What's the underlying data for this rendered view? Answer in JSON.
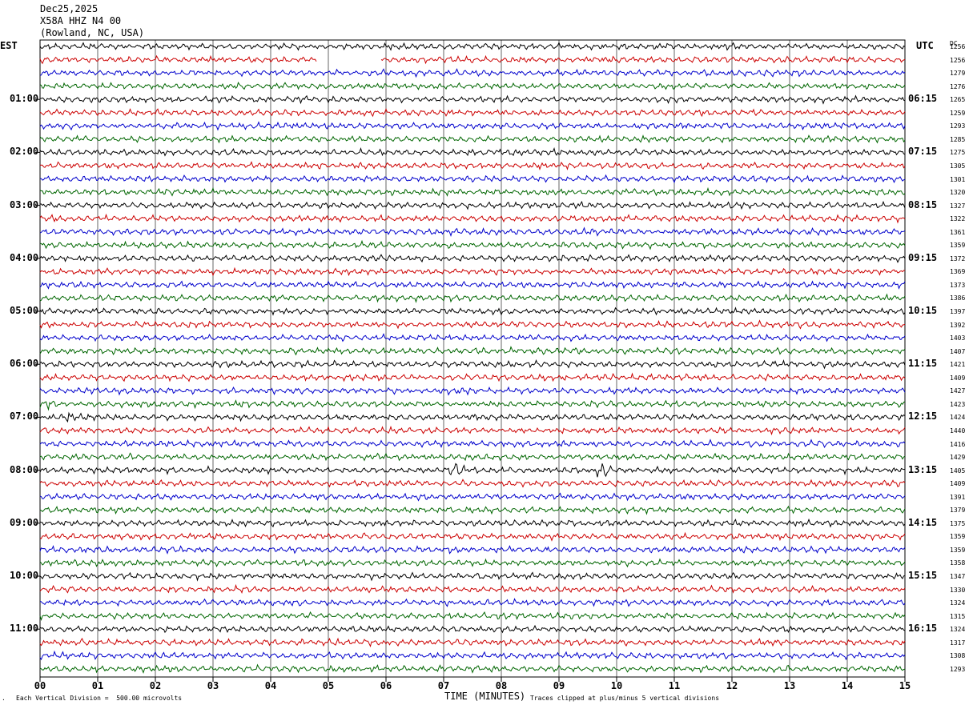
{
  "header": {
    "date": "Dec25,2025",
    "station": "X58A HHZ N4 00",
    "location": "(Rowland, NC, USA)"
  },
  "left_axis_title": "EST",
  "right_axis_title": "UTC",
  "dc_title": "DC",
  "footer": {
    "scale_note": "Each Vertical Division =  500.00 microvolts",
    "clip_note": "Traces clipped at plus/minus 5 vertical divisions",
    "corner_mark": "."
  },
  "colors": {
    "trace_cycle": [
      "#000000",
      "#cc0000",
      "#0000cc",
      "#006600"
    ],
    "grid": "#000000"
  },
  "chart_data": {
    "type": "line",
    "title": "",
    "xlabel": "TIME (MINUTES)",
    "ylabel": "",
    "xlim": [
      0,
      15
    ],
    "x_ticks": [
      "00",
      "01",
      "02",
      "03",
      "04",
      "05",
      "06",
      "07",
      "08",
      "09",
      "10",
      "11",
      "12",
      "13",
      "14",
      "15"
    ],
    "traces_per_hour": 4,
    "trace_count": 48,
    "left_hour_labels": [
      "01:00",
      "02:00",
      "03:00",
      "04:00",
      "05:00",
      "06:00",
      "07:00",
      "08:00",
      "09:00",
      "10:00",
      "11:00"
    ],
    "right_hour_labels": [
      "06:15",
      "07:15",
      "08:15",
      "09:15",
      "10:15",
      "11:15",
      "12:15",
      "13:15",
      "14:15",
      "15:15",
      "16:15"
    ],
    "dc_offsets": [
      1256,
      1256,
      1279,
      1276,
      1265,
      1259,
      1293,
      1285,
      1275,
      1305,
      1301,
      1320,
      1327,
      1322,
      1361,
      1359,
      1372,
      1369,
      1373,
      1386,
      1397,
      1392,
      1403,
      1407,
      1421,
      1409,
      1427,
      1423,
      1424,
      1440,
      1416,
      1429,
      1405,
      1409,
      1391,
      1379,
      1375,
      1359,
      1359,
      1358,
      1347,
      1330,
      1324,
      1315,
      1324,
      1317,
      1308,
      1293
    ],
    "gaps": [
      {
        "trace": 1,
        "from_min": 4.8,
        "to_min": 5.9
      }
    ],
    "events": [
      {
        "trace": 32,
        "at_min": 7.25,
        "amplitude": "moderate"
      },
      {
        "trace": 32,
        "at_min": 9.75,
        "amplitude": "moderate"
      },
      {
        "trace": 28,
        "at_min": 0.5,
        "amplitude": "small"
      },
      {
        "trace": 27,
        "at_min": 0.15,
        "amplitude": "small"
      }
    ]
  }
}
